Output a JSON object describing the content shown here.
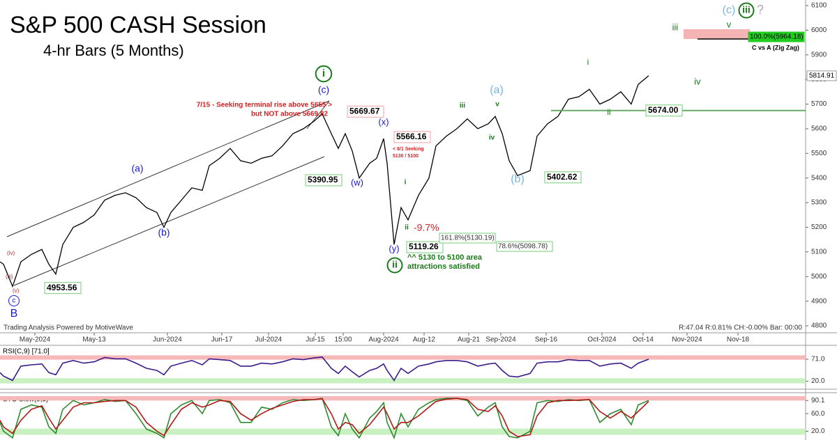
{
  "chart_data": [
    {
      "type": "line",
      "title": "S&P 500 CASH Session",
      "subtitle": "4-hr Bars (5 Months)",
      "color": "#000000",
      "x": [
        0,
        1,
        3.6,
        6,
        9,
        12,
        14,
        16,
        18,
        21,
        24,
        27,
        30,
        33,
        36,
        39,
        42,
        45,
        47,
        49,
        52,
        55,
        58,
        60,
        63,
        66,
        69,
        72,
        75,
        78,
        81,
        84,
        87,
        90,
        92.4,
        95,
        97,
        99,
        101,
        103,
        106,
        108,
        110,
        111,
        113,
        115,
        117,
        120,
        123,
        125,
        128,
        131,
        134,
        137,
        140,
        142,
        144,
        146,
        148.4,
        152,
        154,
        157,
        160,
        163,
        166,
        169,
        172,
        175,
        178,
        181,
        183,
        186
      ],
      "values": [
        5060,
        5050,
        4960,
        5060,
        5090,
        5110,
        5050,
        5010,
        5130,
        5200,
        5220,
        5250,
        5310,
        5330,
        5340,
        5320,
        5280,
        5260,
        5200,
        5260,
        5310,
        5360,
        5350,
        5450,
        5480,
        5520,
        5470,
        5460,
        5480,
        5490,
        5530,
        5580,
        5600,
        5630,
        5660,
        5580,
        5520,
        5580,
        5510,
        5400,
        5460,
        5480,
        5560,
        5460,
        5130,
        5280,
        5230,
        5330,
        5400,
        5530,
        5570,
        5600,
        5640,
        5600,
        5620,
        5650,
        5580,
        5470,
        5410,
        5430,
        5570,
        5620,
        5650,
        5720,
        5730,
        5760,
        5700,
        5720,
        5750,
        5700,
        5780,
        5815
      ],
      "xlim": [
        0,
        230
      ],
      "xticks": [
        {
          "value": 10,
          "label": "May-2024"
        },
        {
          "value": 27,
          "label": "May-13"
        },
        {
          "value": 48,
          "label": "Jun-2024"
        },
        {
          "value": 63.6,
          "label": "Jun-17"
        },
        {
          "value": 77,
          "label": "Jul-2024"
        },
        {
          "value": 90.4,
          "label": "Jul-15"
        },
        {
          "value": 98.4,
          "label": "15:00"
        },
        {
          "value": 110,
          "label": "Aug-2024"
        },
        {
          "value": 121.6,
          "label": "Aug-12"
        },
        {
          "value": 134.4,
          "label": "Aug-21"
        },
        {
          "value": 143.6,
          "label": "Sep-2024"
        },
        {
          "value": 156.6,
          "label": "Sep-16"
        },
        {
          "value": 172.6,
          "label": "Oct-2024"
        },
        {
          "value": 184.4,
          "label": "Oct-14"
        },
        {
          "value": 197,
          "label": "Nov-2024"
        },
        {
          "value": 211.6,
          "label": "Nov-18"
        }
      ],
      "ylim": [
        4800,
        6100
      ],
      "yticks": [
        4800,
        4900,
        5000,
        5100,
        5200,
        5300,
        5400,
        5500,
        5600,
        5700,
        5800,
        5900,
        6000,
        6100
      ],
      "last_price": 5814.91,
      "price_labels": [
        5669.67,
        5566.16,
        5390.95,
        5119.26,
        5402.62,
        {
          "value": 5674,
          "label": "5674.00"
        },
        4953.56
      ]
    },
    {
      "type": "line",
      "title": "RSI(C,9) [71.0]",
      "color": "#3b1a8a",
      "values": [
        40,
        32,
        22,
        55,
        58,
        60,
        40,
        35,
        62,
        68,
        62,
        65,
        75,
        72,
        72,
        62,
        50,
        45,
        35,
        55,
        62,
        68,
        58,
        72,
        70,
        68,
        55,
        55,
        62,
        60,
        65,
        72,
        70,
        74,
        76,
        50,
        38,
        55,
        42,
        30,
        45,
        50,
        60,
        45,
        22,
        50,
        38,
        55,
        60,
        65,
        68,
        68,
        65,
        55,
        60,
        62,
        45,
        32,
        30,
        38,
        62,
        65,
        65,
        70,
        68,
        68,
        55,
        60,
        62,
        50,
        62,
        71
      ],
      "ylim": [
        0,
        100
      ],
      "yticks": [
        {
          "value": 71,
          "label": "71.0"
        },
        {
          "value": 20,
          "label": "20.0"
        }
      ],
      "zones": [
        {
          "from": 70,
          "to": 80,
          "color": "#f6b8b8"
        },
        {
          "from": 15,
          "to": 27,
          "color": "#c8f0c0"
        }
      ]
    },
    {
      "type": "line",
      "title": "STO Slow(9,3)",
      "series": [
        {
          "color": "#2e8b2e",
          "values": [
            40,
            20,
            5,
            70,
            80,
            75,
            30,
            15,
            70,
            90,
            80,
            85,
            92,
            88,
            90,
            60,
            25,
            15,
            5,
            60,
            80,
            90,
            60,
            90,
            92,
            85,
            40,
            40,
            75,
            70,
            85,
            92,
            90,
            92,
            95,
            30,
            10,
            60,
            25,
            5,
            50,
            65,
            85,
            40,
            5,
            60,
            30,
            70,
            85,
            92,
            95,
            95,
            90,
            55,
            75,
            85,
            30,
            8,
            5,
            20,
            85,
            90,
            88,
            92,
            90,
            92,
            40,
            60,
            70,
            35,
            80,
            90.1
          ]
        },
        {
          "color": "#b01818",
          "values": [
            45,
            30,
            15,
            45,
            70,
            78,
            50,
            25,
            45,
            75,
            85,
            85,
            88,
            90,
            90,
            75,
            40,
            20,
            10,
            35,
            70,
            85,
            75,
            80,
            90,
            88,
            60,
            45,
            60,
            72,
            80,
            88,
            92,
            92,
            94,
            60,
            25,
            40,
            35,
            15,
            35,
            55,
            75,
            60,
            25,
            40,
            40,
            55,
            75,
            88,
            93,
            95,
            92,
            70,
            65,
            78,
            55,
            20,
            8,
            12,
            55,
            85,
            90,
            90,
            91,
            92,
            65,
            50,
            65,
            50,
            65,
            88
          ]
        }
      ],
      "ylim": [
        0,
        100
      ],
      "yticks": [
        {
          "value": 90.1,
          "label": "90.1"
        },
        {
          "value": 60,
          "label": "60.0"
        },
        {
          "value": 20,
          "label": "20.0"
        }
      ],
      "zones": [
        {
          "from": 90,
          "to": 100,
          "color": "#f6b8b8"
        },
        {
          "from": 12,
          "to": 26,
          "color": "#c8f0c0"
        }
      ]
    }
  ],
  "annotations": [
    "(iv)",
    "(iii)",
    "(v)",
    "c",
    "B",
    "(a)",
    "(b)",
    "(c)",
    "i",
    "(x)",
    "(w)",
    "(y)",
    "ii",
    "(a)",
    "(b)",
    "(c)",
    "iii",
    "?",
    "v",
    "iii",
    "iv",
    "i",
    "ii",
    "iii",
    "iv",
    "v",
    "i",
    "ii",
    "7/15 - Seeking terminal rise above 5655 >",
    "but NOT above 5669.82",
    "< 8/1 Seeking",
    "5130 / 5100",
    "-9.7%",
    "^^ 5130 to 5100 area",
    "attractions satisfied",
    "161.8%(5130.19)",
    "78.6%(5098.78)",
    "100.0%(5964.18)",
    "C vs A (Zig Zag)",
    "Trading Analysis Powered by MotiveWave",
    "R:47.04  R:0.81%  CH:-0.00%  Bar: 00:00"
  ]
}
